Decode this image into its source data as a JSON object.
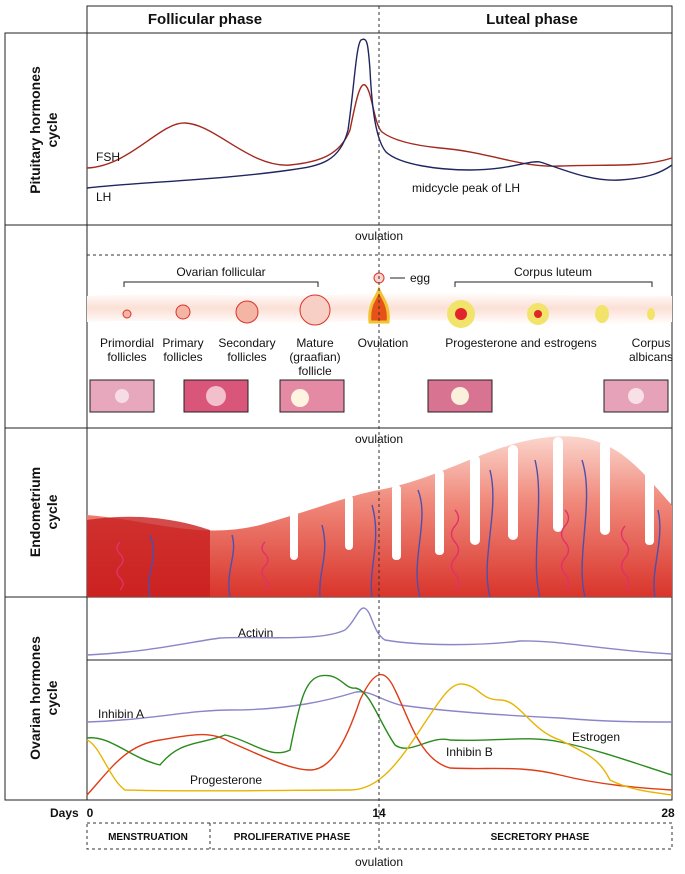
{
  "header": {
    "follicular": "Follicular phase",
    "luteal": "Luteal phase"
  },
  "pituitary": {
    "label": [
      "Pituitary hormones",
      "cycle"
    ],
    "fsh": "FSH",
    "lh": "LH",
    "peak": "midcycle peak of LH"
  },
  "follicles": {
    "ovulation": "ovulation",
    "ovarian_follicular": "Ovarian follicular",
    "corpus_luteum": "Corpus luteum",
    "egg": "egg",
    "stages": [
      [
        "Primordial",
        "follicles"
      ],
      [
        "Primary",
        "follicles"
      ],
      [
        "Secondary",
        "follicles"
      ],
      [
        "Mature",
        "(graafian)",
        "follicle"
      ],
      [
        "Ovulation"
      ],
      [
        "Progesterone and estrogens"
      ],
      [
        "Corpus",
        "albicans"
      ]
    ]
  },
  "endometrium": {
    "label": [
      "Endometrium",
      "cycle"
    ],
    "ovulation": "ovulation"
  },
  "ovarian": {
    "label": [
      "Ovarian hormones",
      "cycle"
    ],
    "activin": "Activin",
    "inhibin_a": "Inhibin A",
    "inhibin_b": "Inhibin B",
    "estrogen": "Estrogen",
    "progesterone": "Progesterone"
  },
  "days": {
    "label": "Days",
    "ticks": [
      "0",
      "14",
      "28"
    ]
  },
  "phases": [
    "MENSTRUATION",
    "PROLIFERATIVE PHASE",
    "SECRETORY PHASE"
  ],
  "ovulation": "ovulation"
}
